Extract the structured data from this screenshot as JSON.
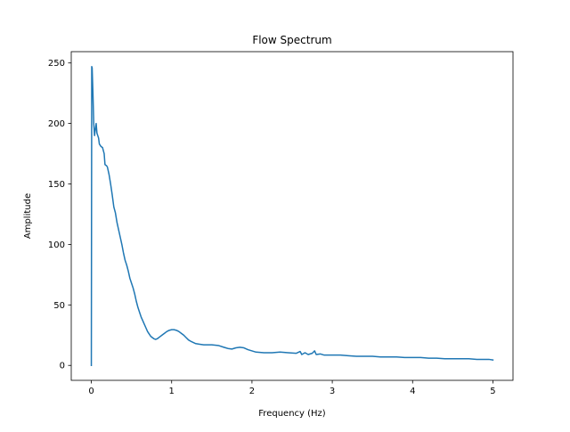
{
  "chart_data": {
    "type": "line",
    "title": "Flow Spectrum",
    "xlabel": "Frequency (Hz)",
    "ylabel": "Amplitude",
    "xlim": [
      -0.25,
      5.25
    ],
    "ylim": [
      -12.35,
      259.35
    ],
    "xticks": [
      0,
      1,
      2,
      3,
      4,
      5
    ],
    "yticks": [
      0,
      50,
      100,
      150,
      200,
      250
    ],
    "grid": false,
    "legend": "none",
    "series": [
      {
        "color": "#1f77b4",
        "points": [
          [
            0.0,
            0.0
          ],
          [
            0.005,
            247.0
          ],
          [
            0.01,
            246.0
          ],
          [
            0.02,
            225.0
          ],
          [
            0.03,
            200.0
          ],
          [
            0.04,
            190.0
          ],
          [
            0.05,
            195.0
          ],
          [
            0.06,
            200.0
          ],
          [
            0.07,
            192.0
          ],
          [
            0.08,
            190.0
          ],
          [
            0.09,
            188.0
          ],
          [
            0.1,
            183.0
          ],
          [
            0.12,
            181.0
          ],
          [
            0.14,
            180.0
          ],
          [
            0.16,
            175.0
          ],
          [
            0.17,
            166.0
          ],
          [
            0.19,
            165.0
          ],
          [
            0.2,
            164.0
          ],
          [
            0.22,
            158.0
          ],
          [
            0.24,
            150.0
          ],
          [
            0.26,
            141.0
          ],
          [
            0.28,
            131.0
          ],
          [
            0.3,
            126.0
          ],
          [
            0.32,
            118.0
          ],
          [
            0.34,
            112.0
          ],
          [
            0.36,
            106.0
          ],
          [
            0.38,
            100.0
          ],
          [
            0.4,
            93.0
          ],
          [
            0.42,
            87.0
          ],
          [
            0.44,
            83.0
          ],
          [
            0.46,
            78.0
          ],
          [
            0.48,
            72.0
          ],
          [
            0.5,
            68.0
          ],
          [
            0.52,
            64.0
          ],
          [
            0.54,
            59.0
          ],
          [
            0.56,
            53.0
          ],
          [
            0.58,
            48.0
          ],
          [
            0.6,
            44.0
          ],
          [
            0.62,
            40.0
          ],
          [
            0.64,
            37.0
          ],
          [
            0.66,
            34.0
          ],
          [
            0.68,
            31.0
          ],
          [
            0.7,
            28.0
          ],
          [
            0.72,
            26.0
          ],
          [
            0.74,
            24.0
          ],
          [
            0.76,
            23.0
          ],
          [
            0.78,
            22.0
          ],
          [
            0.8,
            21.5
          ],
          [
            0.82,
            22.0
          ],
          [
            0.85,
            23.5
          ],
          [
            0.88,
            25.0
          ],
          [
            0.91,
            26.5
          ],
          [
            0.94,
            28.0
          ],
          [
            0.97,
            29.0
          ],
          [
            1.0,
            29.5
          ],
          [
            1.03,
            29.5
          ],
          [
            1.06,
            29.0
          ],
          [
            1.09,
            28.0
          ],
          [
            1.12,
            26.5
          ],
          [
            1.15,
            25.0
          ],
          [
            1.18,
            23.0
          ],
          [
            1.21,
            21.0
          ],
          [
            1.25,
            19.5
          ],
          [
            1.3,
            18.0
          ],
          [
            1.35,
            17.5
          ],
          [
            1.4,
            17.0
          ],
          [
            1.5,
            17.0
          ],
          [
            1.58,
            16.5
          ],
          [
            1.65,
            15.0
          ],
          [
            1.7,
            14.0
          ],
          [
            1.75,
            13.5
          ],
          [
            1.8,
            14.5
          ],
          [
            1.85,
            15.0
          ],
          [
            1.9,
            14.5
          ],
          [
            1.95,
            13.0
          ],
          [
            2.0,
            12.0
          ],
          [
            2.05,
            11.0
          ],
          [
            2.15,
            10.5
          ],
          [
            2.25,
            10.5
          ],
          [
            2.35,
            11.0
          ],
          [
            2.45,
            10.5
          ],
          [
            2.55,
            10.0
          ],
          [
            2.6,
            11.5
          ],
          [
            2.62,
            9.0
          ],
          [
            2.66,
            10.5
          ],
          [
            2.7,
            9.0
          ],
          [
            2.75,
            10.0
          ],
          [
            2.78,
            12.0
          ],
          [
            2.8,
            9.0
          ],
          [
            2.85,
            9.5
          ],
          [
            2.9,
            8.5
          ],
          [
            3.0,
            8.5
          ],
          [
            3.1,
            8.5
          ],
          [
            3.2,
            8.0
          ],
          [
            3.3,
            7.5
          ],
          [
            3.4,
            7.5
          ],
          [
            3.5,
            7.5
          ],
          [
            3.6,
            7.0
          ],
          [
            3.7,
            7.0
          ],
          [
            3.8,
            7.0
          ],
          [
            3.9,
            6.5
          ],
          [
            4.0,
            6.5
          ],
          [
            4.1,
            6.5
          ],
          [
            4.2,
            6.0
          ],
          [
            4.3,
            6.0
          ],
          [
            4.4,
            5.5
          ],
          [
            4.5,
            5.5
          ],
          [
            4.6,
            5.5
          ],
          [
            4.7,
            5.5
          ],
          [
            4.8,
            5.0
          ],
          [
            4.9,
            5.0
          ],
          [
            4.95,
            5.0
          ],
          [
            5.0,
            4.5
          ]
        ]
      }
    ]
  }
}
